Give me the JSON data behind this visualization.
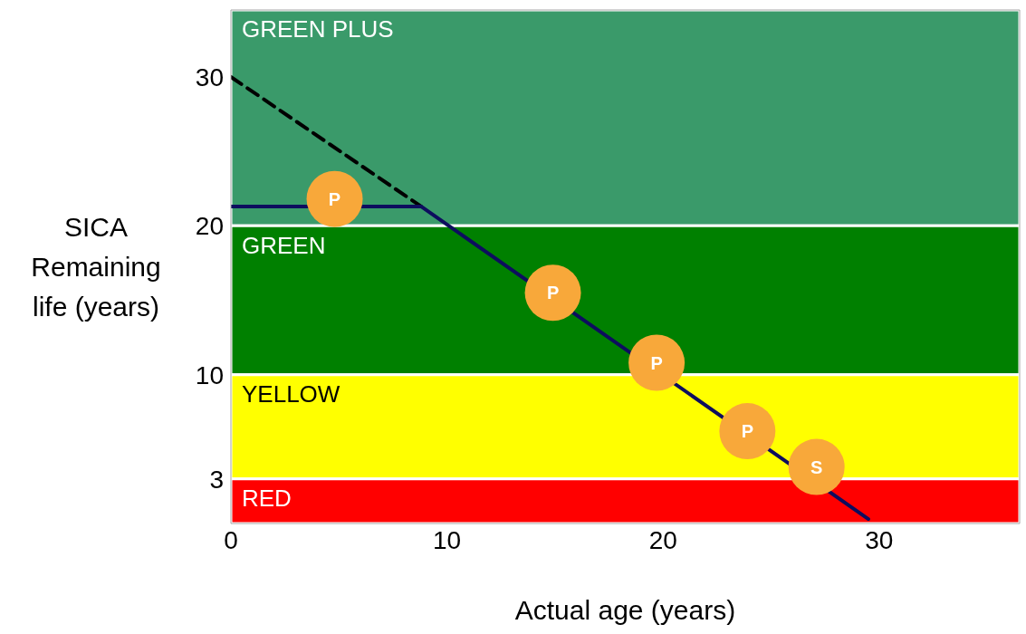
{
  "chart_data": {
    "type": "line",
    "xlabel": "Actual age (years)",
    "ylabel": "SICA Remaining life (years)",
    "xlim": [
      0,
      36.5
    ],
    "xticks": [
      0,
      10,
      20,
      30
    ],
    "ylim": [
      0,
      34.5
    ],
    "yticks": [
      3,
      10,
      20,
      30
    ],
    "bands": [
      {
        "axis": "y",
        "from": 20,
        "to": 34.5,
        "label": "GREEN PLUS",
        "color": "#3a9a6a"
      },
      {
        "axis": "y",
        "from": 10,
        "to": 20,
        "label": "GREEN",
        "color": "#008000"
      },
      {
        "axis": "y",
        "from": 3,
        "to": 10,
        "label": "YELLOW",
        "color": "#ffff00"
      },
      {
        "axis": "y",
        "from": 0,
        "to": 3,
        "label": "RED",
        "color": "#ff0000"
      }
    ],
    "series": [
      {
        "color": "#000000",
        "line_style": "dashed",
        "x": [
          0,
          8.8
        ],
        "values": [
          30,
          21.3
        ]
      },
      {
        "color": "#0d0d5e",
        "line_style": "solid",
        "x": [
          0,
          8.8,
          29.5
        ],
        "values": [
          21.3,
          21.3,
          0.3
        ]
      },
      {
        "type": "scatter",
        "color": "#f8a83a",
        "marker": "circle",
        "x": [
          4.8,
          14.9,
          19.7,
          23.9,
          27.1
        ],
        "values": [
          21.8,
          15.5,
          10.8,
          6.2,
          3.8
        ],
        "value_labels": [
          "P",
          "P",
          "P",
          "P",
          "S"
        ]
      }
    ]
  }
}
